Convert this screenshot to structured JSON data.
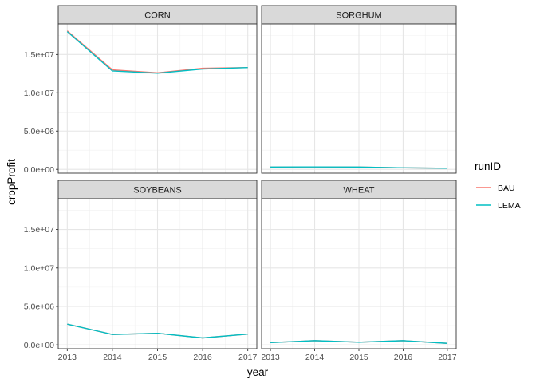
{
  "chart_data": {
    "type": "line",
    "xlabel": "year",
    "ylabel": "cropProfit",
    "x": [
      2013,
      2014,
      2015,
      2016,
      2017
    ],
    "x_ticks": [
      "2013",
      "2014",
      "2015",
      "2016",
      "2017"
    ],
    "xlim": [
      2012.8,
      2017.2
    ],
    "ylim": [
      -500000,
      19000000
    ],
    "y_ticks": [
      0,
      5000000,
      10000000,
      15000000
    ],
    "y_tick_labels": [
      "0.0e+00",
      "5.0e+06",
      "1.0e+07",
      "1.5e+07"
    ],
    "grid": true,
    "legend": {
      "title": "runID",
      "placement": "right",
      "entries": [
        {
          "name": "BAU",
          "color": "#F8766D"
        },
        {
          "name": "LEMA",
          "color": "#00BFC4"
        }
      ]
    },
    "panels": [
      {
        "title": "CORN",
        "series": [
          {
            "name": "BAU",
            "values": [
              18100000,
              13000000,
              12600000,
              13200000,
              13300000
            ]
          },
          {
            "name": "LEMA",
            "values": [
              18000000,
              12850000,
              12550000,
              13100000,
              13300000
            ]
          }
        ]
      },
      {
        "title": "SORGHUM",
        "series": [
          {
            "name": "BAU",
            "values": [
              300000,
              320000,
              300000,
              200000,
              150000
            ]
          },
          {
            "name": "LEMA",
            "values": [
              300000,
              320000,
              300000,
              200000,
              150000
            ]
          }
        ]
      },
      {
        "title": "SOYBEANS",
        "series": [
          {
            "name": "BAU",
            "values": [
              2700000,
              1350000,
              1500000,
              900000,
              1400000
            ]
          },
          {
            "name": "LEMA",
            "values": [
              2700000,
              1350000,
              1500000,
              900000,
              1400000
            ]
          }
        ]
      },
      {
        "title": "WHEAT",
        "series": [
          {
            "name": "BAU",
            "values": [
              300000,
              550000,
              350000,
              550000,
              200000
            ]
          },
          {
            "name": "LEMA",
            "values": [
              300000,
              550000,
              350000,
              550000,
              200000
            ]
          }
        ]
      }
    ]
  }
}
